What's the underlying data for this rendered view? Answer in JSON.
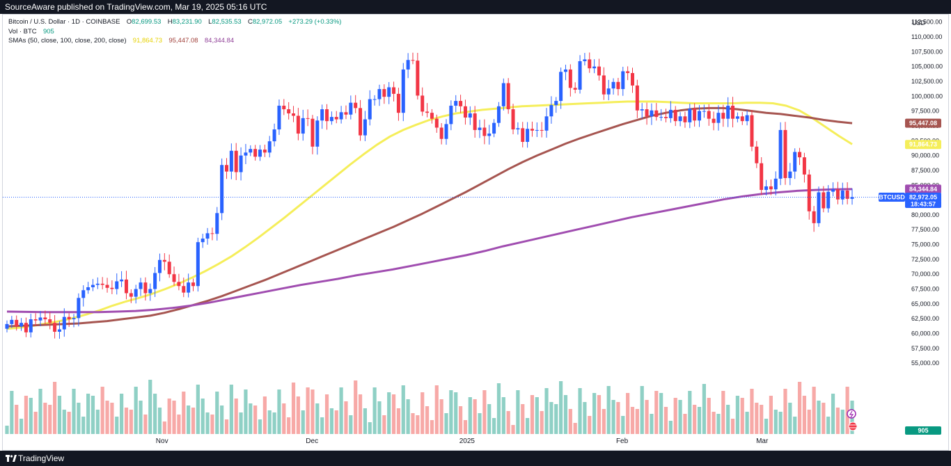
{
  "header": {
    "publisher_text": "SourceAware published on TradingView.com, Mar 19, 2025 05:16 UTC"
  },
  "footer": {
    "brand": "TradingView"
  },
  "legend": {
    "symbol_title": "Bitcoin / U.S. Dollar · 1D · COINBASE",
    "open_label": "O",
    "open": "82,699.53",
    "high_label": "H",
    "high": "83,231.90",
    "low_label": "L",
    "low": "82,535.53",
    "close_label": "C",
    "close": "82,972.05",
    "change": "+273.29 (+0.33%)",
    "vol_label": "Vol · BTC",
    "vol_value": "905",
    "sma_label": "SMAs (50, close, 100, close, 200, close)",
    "sma50_value": "91,864.73",
    "sma100_value": "95,447.08",
    "sma200_value": "84,344.84"
  },
  "colors": {
    "up": "#089981",
    "down": "#f23645",
    "vol_up": "#8fd0c5",
    "vol_down": "#f7a9a7",
    "sma50": "#f5ee5a",
    "sma100": "#a65550",
    "sma200": "#a04db0",
    "price_tag": "#2962ff"
  },
  "chart_data": {
    "type": "candlestick",
    "currency": "USD",
    "price_axis": {
      "unit": "USD",
      "ticks": [
        55000,
        57500,
        60000,
        62500,
        65000,
        67500,
        70000,
        72500,
        75000,
        77500,
        80000,
        82500,
        85000,
        87500,
        90000,
        92500,
        95000,
        97500,
        100000,
        102500,
        105000,
        107500,
        110000,
        112500
      ],
      "tick_labels": [
        "55,000.00",
        "57,500.00",
        "60,000.00",
        "62,500.00",
        "65,000.00",
        "67,500.00",
        "70,000.00",
        "72,500.00",
        "75,000.00",
        "77,500.00",
        "80,000.00",
        "82,500.00",
        "85,000.00",
        "87,500.00",
        "90,000.00",
        "92,500.00",
        "95,000.00",
        "97,500.00",
        "100,000.00",
        "102,500.00",
        "105,000.00",
        "107,500.00",
        "110,000.00",
        "112,500.00"
      ],
      "range": [
        54000,
        114000
      ]
    },
    "time_axis": {
      "start": "2024-10-01",
      "end": "2025-03-19",
      "labels": [
        {
          "date": "2024-11-01",
          "text": "Nov"
        },
        {
          "date": "2024-12-01",
          "text": "Dec"
        },
        {
          "date": "2025-01-01",
          "text": "2025"
        },
        {
          "date": "2025-02-01",
          "text": "Feb"
        },
        {
          "date": "2025-03-01",
          "text": "Mar"
        }
      ]
    },
    "candles_close": [
      61600,
      62300,
      61200,
      61800,
      60200,
      62400,
      62200,
      62700,
      62400,
      61800,
      60300,
      60700,
      62800,
      62400,
      62600,
      66000,
      67300,
      67800,
      68200,
      68400,
      68200,
      67700,
      67500,
      68800,
      69100,
      66800,
      66200,
      67500,
      68600,
      66800,
      67500,
      70200,
      72400,
      72100,
      70000,
      68700,
      68000,
      66900,
      68600,
      68000,
      75400,
      76000,
      76900,
      76800,
      80300,
      88400,
      87300,
      90800,
      87200,
      90000,
      90500,
      91100,
      89800,
      91000,
      90500,
      92400,
      94400,
      98400,
      97800,
      97100,
      96700,
      93700,
      96300,
      96200,
      91500,
      95900,
      97800,
      95800,
      96500,
      96100,
      97300,
      96900,
      98900,
      98000,
      93400,
      96100,
      99500,
      99500,
      101200,
      99900,
      101500,
      100400,
      97200,
      104500,
      106100,
      106000,
      100100,
      97400,
      97200,
      96200,
      94700,
      92800,
      95300,
      98400,
      99200,
      98300,
      96400,
      97100,
      94300,
      94700,
      93300,
      93700,
      95500,
      98300,
      102200,
      97800,
      94400,
      94600,
      92300,
      94500,
      94200,
      94300,
      94200,
      96600,
      98500,
      99200,
      104100,
      104500,
      101400,
      101100,
      105900,
      106200,
      104700,
      105000,
      103500,
      100300,
      101300,
      102400,
      101200,
      104200,
      103900,
      101800,
      97600,
      97800,
      96600,
      97600,
      96500,
      96500,
      96300,
      97700,
      95800,
      96600,
      95600,
      97900,
      95900,
      97500,
      97500,
      96200,
      95500,
      97200,
      96200,
      98400,
      96200,
      96600,
      95800,
      96800,
      91500,
      88700,
      84200,
      84800,
      84300,
      86100,
      94300,
      86200,
      87300,
      90600,
      89700,
      86800,
      80600,
      78600,
      83800,
      81100,
      83900,
      84300,
      82600,
      84100,
      82700,
      82972
    ],
    "sma50_values": [
      60800,
      61000,
      61300,
      61700,
      62100,
      62600,
      63200,
      63900,
      64700,
      65400,
      66000,
      66700,
      67500,
      68400,
      69400,
      70500,
      71700,
      73000,
      74500,
      76100,
      77800,
      79500,
      81300,
      83100,
      84900,
      86700,
      88500,
      90200,
      91800,
      93200,
      94300,
      95200,
      96000,
      96600,
      97100,
      97400,
      97700,
      97900,
      98100,
      98300,
      98400,
      98500,
      98600,
      98700,
      98800,
      98900,
      99000,
      99100,
      99100,
      99100,
      99000,
      98900,
      98800,
      98800,
      98800,
      98800,
      98900,
      98900,
      98800,
      98400,
      97600,
      96300,
      94800,
      93300,
      91900
    ],
    "sma100_values": [
      61200,
      61300,
      61400,
      61500,
      61600,
      61700,
      61900,
      62100,
      62400,
      62700,
      63000,
      63500,
      64100,
      64800,
      65500,
      66300,
      67200,
      68100,
      69000,
      70000,
      71000,
      72000,
      73000,
      74000,
      75000,
      76000,
      77000,
      78000,
      79100,
      80200,
      81400,
      82600,
      83800,
      85100,
      86400,
      87700,
      88900,
      90000,
      91000,
      92000,
      92900,
      93700,
      94500,
      95300,
      96000,
      96700,
      97200,
      97600,
      97900,
      98000,
      98000,
      97800,
      97500,
      97200,
      97000,
      96700,
      96400,
      96000,
      95700,
      95447
    ],
    "sma200_values": [
      63700,
      63650,
      63600,
      63600,
      63600,
      63600,
      63700,
      63800,
      64000,
      64300,
      64700,
      65200,
      65800,
      66400,
      67000,
      67600,
      68200,
      68700,
      69200,
      69800,
      70300,
      70800,
      71400,
      72000,
      72600,
      73200,
      73900,
      74700,
      75400,
      76100,
      76800,
      77500,
      78200,
      78900,
      79600,
      80200,
      80800,
      81400,
      82000,
      82600,
      83100,
      83500,
      83800,
      84050,
      84200,
      84300,
      84344
    ],
    "volume_bars_up_down": "per-candle volume shown as histogram in bottom pane",
    "last_price": 82972.05,
    "last_price_label": "82,972.05",
    "countdown": "18:43:57",
    "symbol_tag": "BTCUSD",
    "sma50_tag": "91,864.73",
    "sma100_tag": "95,447.08",
    "sma200_tag": "84,344.84",
    "volume_tag": "905"
  }
}
